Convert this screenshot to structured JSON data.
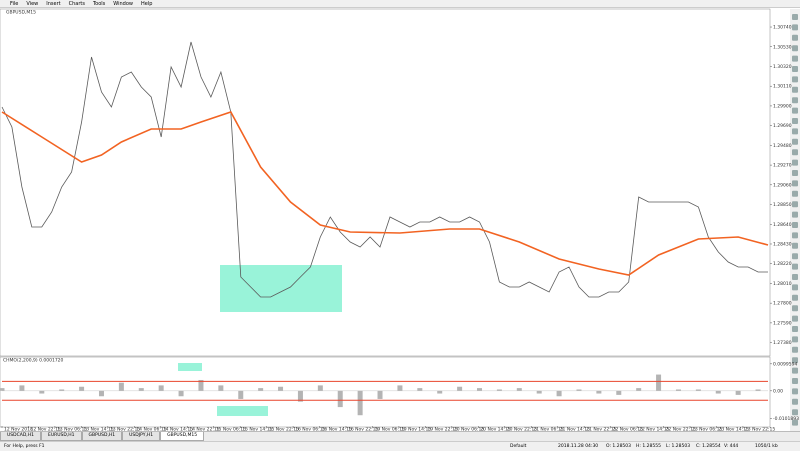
{
  "menu": [
    "File",
    "View",
    "Insert",
    "Charts",
    "Tools",
    "Window",
    "Help"
  ],
  "chart_data": [
    {
      "type": "line",
      "title": "GBPUSD,M15",
      "x": [
        0,
        1,
        2,
        3,
        4,
        5,
        6,
        7,
        8,
        9,
        10,
        11,
        12,
        13,
        14,
        15,
        16,
        17,
        18,
        19,
        20,
        21,
        22,
        23,
        24,
        25,
        26,
        27,
        28,
        29,
        30,
        31,
        32,
        33,
        34,
        35,
        36,
        37,
        38,
        39,
        40,
        41,
        42,
        43,
        44,
        45,
        46,
        47,
        48,
        49,
        50,
        51,
        52,
        53,
        54,
        55,
        56,
        57,
        58,
        59,
        60,
        61,
        62,
        63,
        64,
        65,
        66,
        67,
        68,
        69,
        70,
        71,
        72,
        73,
        74,
        75,
        76,
        77
      ],
      "series": [
        {
          "color": "#5a5a5a",
          "values": [
            1.29889,
            1.29676,
            1.29037,
            1.28611,
            1.28611,
            1.28771,
            1.29037,
            1.29197,
            1.29729,
            1.30421,
            1.30048,
            1.29889,
            1.30208,
            1.30261,
            1.30102,
            1.29995,
            1.29569,
            1.30314,
            1.30102,
            1.30581,
            1.30208,
            1.29995,
            1.30261,
            1.29835,
            1.28079,
            1.27972,
            1.27866,
            1.27866,
            1.27919,
            1.27972,
            1.28079,
            1.28185,
            1.28504,
            1.28717,
            1.28558,
            1.28451,
            1.28398,
            1.28504,
            1.28398,
            1.28717,
            1.28664,
            1.28611,
            1.28664,
            1.28664,
            1.28717,
            1.28664,
            1.28664,
            1.28717,
            1.28664,
            1.28451,
            1.28025,
            1.27972,
            1.27972,
            1.28025,
            1.27972,
            1.27919,
            1.28132,
            1.28185,
            1.27972,
            1.27866,
            1.27866,
            1.27919,
            1.27919,
            1.28025,
            1.2893,
            1.28877,
            1.28877,
            1.28877,
            1.28877,
            1.28877,
            1.28824,
            1.28504,
            1.28345,
            1.28238,
            1.28185,
            1.28185,
            1.28132,
            1.28132
          ]
        },
        {
          "color": "#f26322",
          "x": [
            0,
            4,
            8,
            10,
            12,
            15,
            18,
            20,
            23,
            26,
            29,
            32,
            35,
            40,
            45,
            48,
            52,
            56,
            60,
            63,
            66,
            70,
            74,
            77
          ],
          "values": [
            1.29835,
            1.29569,
            1.29303,
            1.29378,
            1.29516,
            1.29654,
            1.29654,
            1.29729,
            1.29835,
            1.2925,
            1.28877,
            1.28632,
            1.28558,
            1.28547,
            1.2859,
            1.2859,
            1.28451,
            1.2827,
            1.28164,
            1.281,
            1.28313,
            1.28483,
            1.28504,
            1.28419
          ]
        }
      ],
      "xlim": [
        0,
        77
      ],
      "ylim": [
        1.2728,
        1.309
      ],
      "yticks": [
        {
          "value": 1.3074,
          "label": "1.30740"
        },
        {
          "value": 1.3053,
          "label": "1.30530"
        },
        {
          "value": 1.3032,
          "label": "1.30320"
        },
        {
          "value": 1.3011,
          "label": "1.30110"
        },
        {
          "value": 1.299,
          "label": "1.29900"
        },
        {
          "value": 1.2969,
          "label": "1.29690"
        },
        {
          "value": 1.2948,
          "label": "1.29480"
        },
        {
          "value": 1.2927,
          "label": "1.29270"
        },
        {
          "value": 1.2906,
          "label": "1.29060"
        },
        {
          "value": 1.2885,
          "label": "1.28850"
        },
        {
          "value": 1.2864,
          "label": "1.28640"
        },
        {
          "value": 1.2843,
          "label": "1.28430"
        },
        {
          "value": 1.2822,
          "label": "1.28220"
        },
        {
          "value": 1.2801,
          "label": "1.28010"
        },
        {
          "value": 1.278,
          "label": "1.27800"
        },
        {
          "value": 1.2759,
          "label": "1.27590"
        },
        {
          "value": 1.2738,
          "label": "1.27380"
        }
      ],
      "xticks": [
        {
          "value": 0,
          "label": "12 Nov 2018"
        },
        {
          "value": 2.66,
          "label": "12 Nov 22:15"
        },
        {
          "value": 5.32,
          "label": "13 Nov 06:15"
        },
        {
          "value": 7.98,
          "label": "13 Nov 14:15"
        },
        {
          "value": 10.64,
          "label": "13 Nov 22:15"
        },
        {
          "value": 13.3,
          "label": "14 Nov 06:15"
        },
        {
          "value": 15.96,
          "label": "14 Nov 14:15"
        },
        {
          "value": 18.62,
          "label": "14 Nov 22:15"
        },
        {
          "value": 21.28,
          "label": "15 Nov 06:15"
        },
        {
          "value": 23.94,
          "label": "15 Nov 14:15"
        },
        {
          "value": 26.6,
          "label": "15 Nov 22:15"
        },
        {
          "value": 29.26,
          "label": "16 Nov 06:15"
        },
        {
          "value": 31.92,
          "label": "16 Nov 14:15"
        },
        {
          "value": 34.58,
          "label": "16 Nov 22:15"
        },
        {
          "value": 37.24,
          "label": "19 Nov 06:15"
        },
        {
          "value": 39.9,
          "label": "19 Nov 14:15"
        },
        {
          "value": 42.56,
          "label": "19 Nov 22:15"
        },
        {
          "value": 45.22,
          "label": "20 Nov 06:15"
        },
        {
          "value": 47.88,
          "label": "20 Nov 14:15"
        },
        {
          "value": 50.54,
          "label": "20 Nov 22:15"
        },
        {
          "value": 53.2,
          "label": "21 Nov 06:15"
        },
        {
          "value": 55.86,
          "label": "21 Nov 14:15"
        },
        {
          "value": 58.52,
          "label": "21 Nov 22:15"
        },
        {
          "value": 61.18,
          "label": "22 Nov 06:15"
        },
        {
          "value": 63.84,
          "label": "22 Nov 14:15"
        },
        {
          "value": 66.5,
          "label": "22 Nov 22:15"
        },
        {
          "value": 69.16,
          "label": "23 Nov 06:15"
        },
        {
          "value": 71.82,
          "label": "23 Nov 14:15"
        },
        {
          "value": 74.48,
          "label": "23 Nov 22:15"
        }
      ],
      "grid": false
    },
    {
      "type": "bar",
      "title": "CHMO(2,200,9) 0.0001720",
      "x": [
        0,
        2,
        4,
        6,
        8,
        10,
        12,
        14,
        16,
        18,
        20,
        22,
        24,
        26,
        28,
        30,
        32,
        34,
        36,
        38,
        40,
        42,
        44,
        46,
        48,
        50,
        52,
        54,
        56,
        58,
        60,
        62,
        64,
        66,
        68,
        70,
        72,
        74,
        76
      ],
      "values": [
        0.001,
        0.002,
        -0.001,
        0.0005,
        0.0015,
        -0.002,
        0.003,
        0.001,
        0.002,
        -0.002,
        0.004,
        0.002,
        -0.003,
        0.001,
        0.0015,
        -0.004,
        0.002,
        -0.006,
        -0.009,
        -0.003,
        0.002,
        0.001,
        -0.001,
        0.0015,
        0.001,
        0.0005,
        0.001,
        -0.001,
        -0.002,
        0.0005,
        -0.001,
        -0.0015,
        0.001,
        0.006,
        0.0005,
        0.0005,
        -0.001,
        -0.0015,
        0.0005
      ],
      "color": "#b4b4b4",
      "levels": [
        0.0035,
        -0.0035
      ],
      "level_color": "#e8442c",
      "xlim": [
        0,
        77
      ],
      "ylim": [
        -0.0115,
        0.011
      ],
      "yticks": [
        0.0099594,
        {
          "value": 0,
          "label": "0.00"
        },
        -0.0101893
      ]
    }
  ],
  "tabs": [
    "USDCAD,H1",
    "EURUSD,H1",
    "GBPUSD,H1",
    "USDJPY,H1",
    "GBPUSD,M15"
  ],
  "status": [
    "For Help, press F1",
    "Default",
    "2018.11.28 04:30",
    "O: 1.28503",
    "H: 1.28555",
    "L: 1.28503",
    "C: 1.28554",
    "V: 444",
    "1050/1 kb"
  ]
}
